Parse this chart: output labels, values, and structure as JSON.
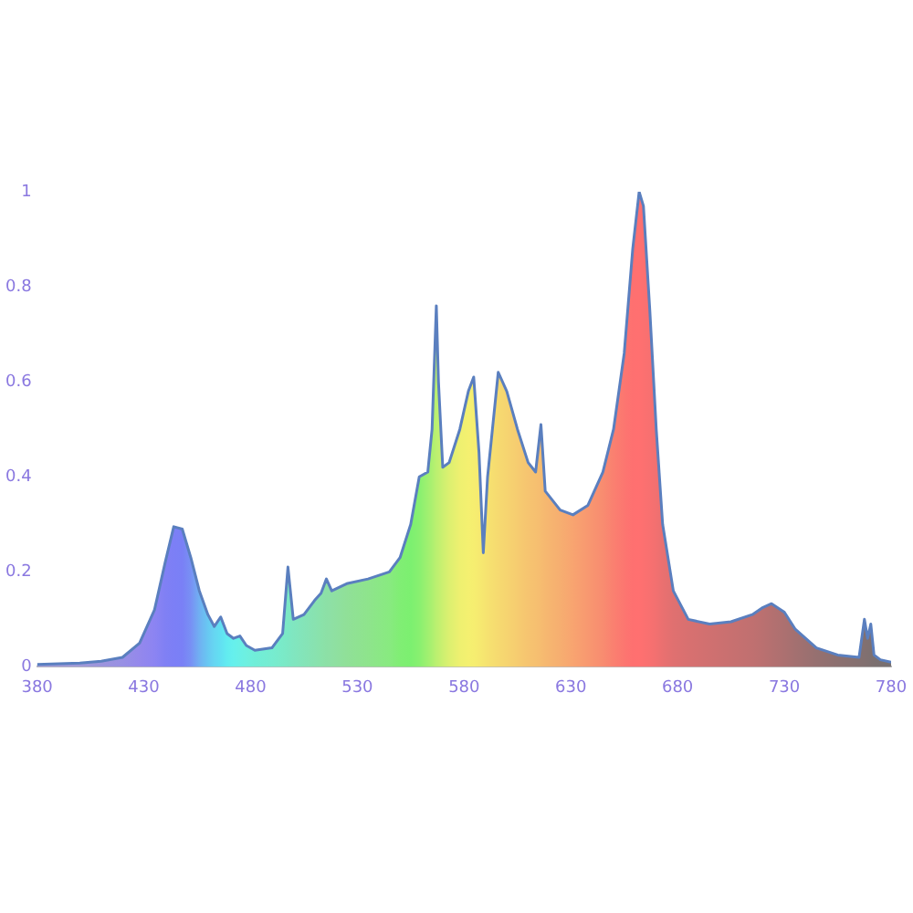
{
  "chart_data": {
    "type": "area",
    "x": [
      380,
      400,
      410,
      420,
      428,
      435,
      440,
      444,
      448,
      452,
      456,
      460,
      463,
      466,
      469,
      472,
      475,
      478,
      482,
      490,
      495,
      497.5,
      500,
      505,
      510,
      513,
      515.5,
      518,
      525,
      535,
      545,
      550,
      555,
      559,
      563,
      565,
      567,
      568,
      570,
      573,
      578,
      582,
      584.5,
      587,
      589,
      591,
      596,
      600,
      605,
      610,
      613.5,
      616,
      618,
      625,
      631,
      638,
      645,
      650,
      655,
      659,
      662,
      664,
      667,
      670,
      673,
      678,
      685,
      695,
      705,
      715,
      720,
      724,
      730,
      735,
      745,
      755,
      765,
      767.5,
      769,
      770.5,
      772,
      775,
      780
    ],
    "series": [
      {
        "color": "#5a7fbf",
        "values": [
          0.005,
          0.008,
          0.012,
          0.02,
          0.05,
          0.12,
          0.22,
          0.295,
          0.29,
          0.23,
          0.16,
          0.11,
          0.085,
          0.105,
          0.07,
          0.06,
          0.065,
          0.045,
          0.035,
          0.04,
          0.07,
          0.21,
          0.1,
          0.11,
          0.14,
          0.155,
          0.185,
          0.16,
          0.175,
          0.185,
          0.2,
          0.23,
          0.3,
          0.4,
          0.41,
          0.5,
          0.76,
          0.6,
          0.42,
          0.43,
          0.5,
          0.58,
          0.61,
          0.45,
          0.24,
          0.4,
          0.62,
          0.58,
          0.5,
          0.43,
          0.41,
          0.51,
          0.37,
          0.33,
          0.32,
          0.34,
          0.41,
          0.5,
          0.66,
          0.88,
          1.0,
          0.97,
          0.75,
          0.5,
          0.3,
          0.16,
          0.1,
          0.09,
          0.095,
          0.11,
          0.125,
          0.133,
          0.115,
          0.08,
          0.04,
          0.025,
          0.02,
          0.1,
          0.06,
          0.09,
          0.025,
          0.015,
          0.01
        ],
        "colors": [
          "#a09ad8",
          "#a09ad8",
          "#9c94dc",
          "#9890e4",
          "#9488ec",
          "#8c84f2",
          "#8080f4",
          "#7c7ff6",
          "#7a80f6",
          "#7890f4",
          "#70b0f2",
          "#68c8f2",
          "#66d6f2",
          "#62e0f2",
          "#62ecf0",
          "#66f0ec",
          "#6af0e6",
          "#6ef0e0",
          "#70eed8",
          "#76ecd0",
          "#7aeac8",
          "#7ce8c4",
          "#80e6c0",
          "#84e4b8",
          "#88e2b0",
          "#8ae2aa",
          "#8ce0a6",
          "#8ee0a4",
          "#90e098",
          "#8ee48c",
          "#88ea80",
          "#80ee74",
          "#7cf070",
          "#88f070",
          "#a0f070",
          "#acf070",
          "#bcf070",
          "#c0f070",
          "#ccf070",
          "#dcf070",
          "#eef070",
          "#f4f070",
          "#f6ee70",
          "#f6ea70",
          "#f6e670",
          "#f6e270",
          "#f6da70",
          "#f6d470",
          "#f6cc70",
          "#f6c470",
          "#f6c070",
          "#f6bc70",
          "#f6b870",
          "#f6ae70",
          "#f8a470",
          "#f89870",
          "#f88c70",
          "#fa8070",
          "#fc7670",
          "#fe7070",
          "#ff7070",
          "#fc7070",
          "#f87070",
          "#f27070",
          "#ea7070",
          "#e07070",
          "#d87070",
          "#d07070",
          "#c87070",
          "#c07070",
          "#ba7070",
          "#b47070",
          "#ac7070",
          "#a47070",
          "#967070",
          "#8c7070",
          "#847070",
          "#827070",
          "#807070",
          "#7e7070",
          "#7c7070",
          "#7a7070",
          "#787070"
        ]
      }
    ],
    "xlim": [
      380,
      780
    ],
    "xticks": [
      380,
      430,
      480,
      530,
      580,
      630,
      680,
      730,
      780
    ],
    "ylim": [
      0,
      1
    ],
    "yticks": [
      0,
      {
        "value": 0.2,
        "label": "0.2"
      },
      {
        "value": 0.4,
        "label": "0.4"
      },
      {
        "value": 0.6,
        "label": "0.6"
      },
      {
        "value": 0.8,
        "label": "0.8"
      },
      1
    ],
    "grid": false,
    "legend": false
  }
}
